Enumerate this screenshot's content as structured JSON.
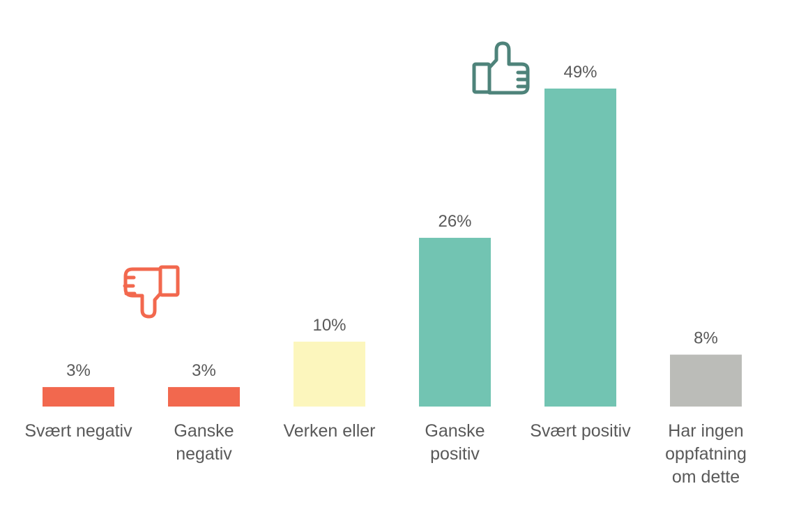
{
  "chart_data": {
    "type": "bar",
    "categories": [
      [
        "Svært negativ"
      ],
      [
        "Ganske",
        "negativ"
      ],
      [
        "Verken eller"
      ],
      [
        "Ganske",
        "positiv"
      ],
      [
        "Svært positiv"
      ],
      [
        "Har ingen",
        "oppfatning",
        "om dette"
      ]
    ],
    "values": [
      3,
      3,
      10,
      26,
      49,
      8
    ],
    "value_labels": [
      "3%",
      "3%",
      "10%",
      "26%",
      "49%",
      "8%"
    ],
    "bar_colors": [
      "#F2684E",
      "#F2684E",
      "#FCF6BD",
      "#72C4B2",
      "#72C4B2",
      "#BBBCB8"
    ],
    "ylim": [
      0,
      49
    ],
    "grid": false,
    "legend": "none",
    "title": "",
    "xlabel": "",
    "ylabel": ""
  },
  "icons": {
    "negative": {
      "name": "thumbs-down-icon",
      "color": "#F2684E"
    },
    "positive": {
      "name": "thumbs-up-icon",
      "color": "#4E837A"
    }
  }
}
